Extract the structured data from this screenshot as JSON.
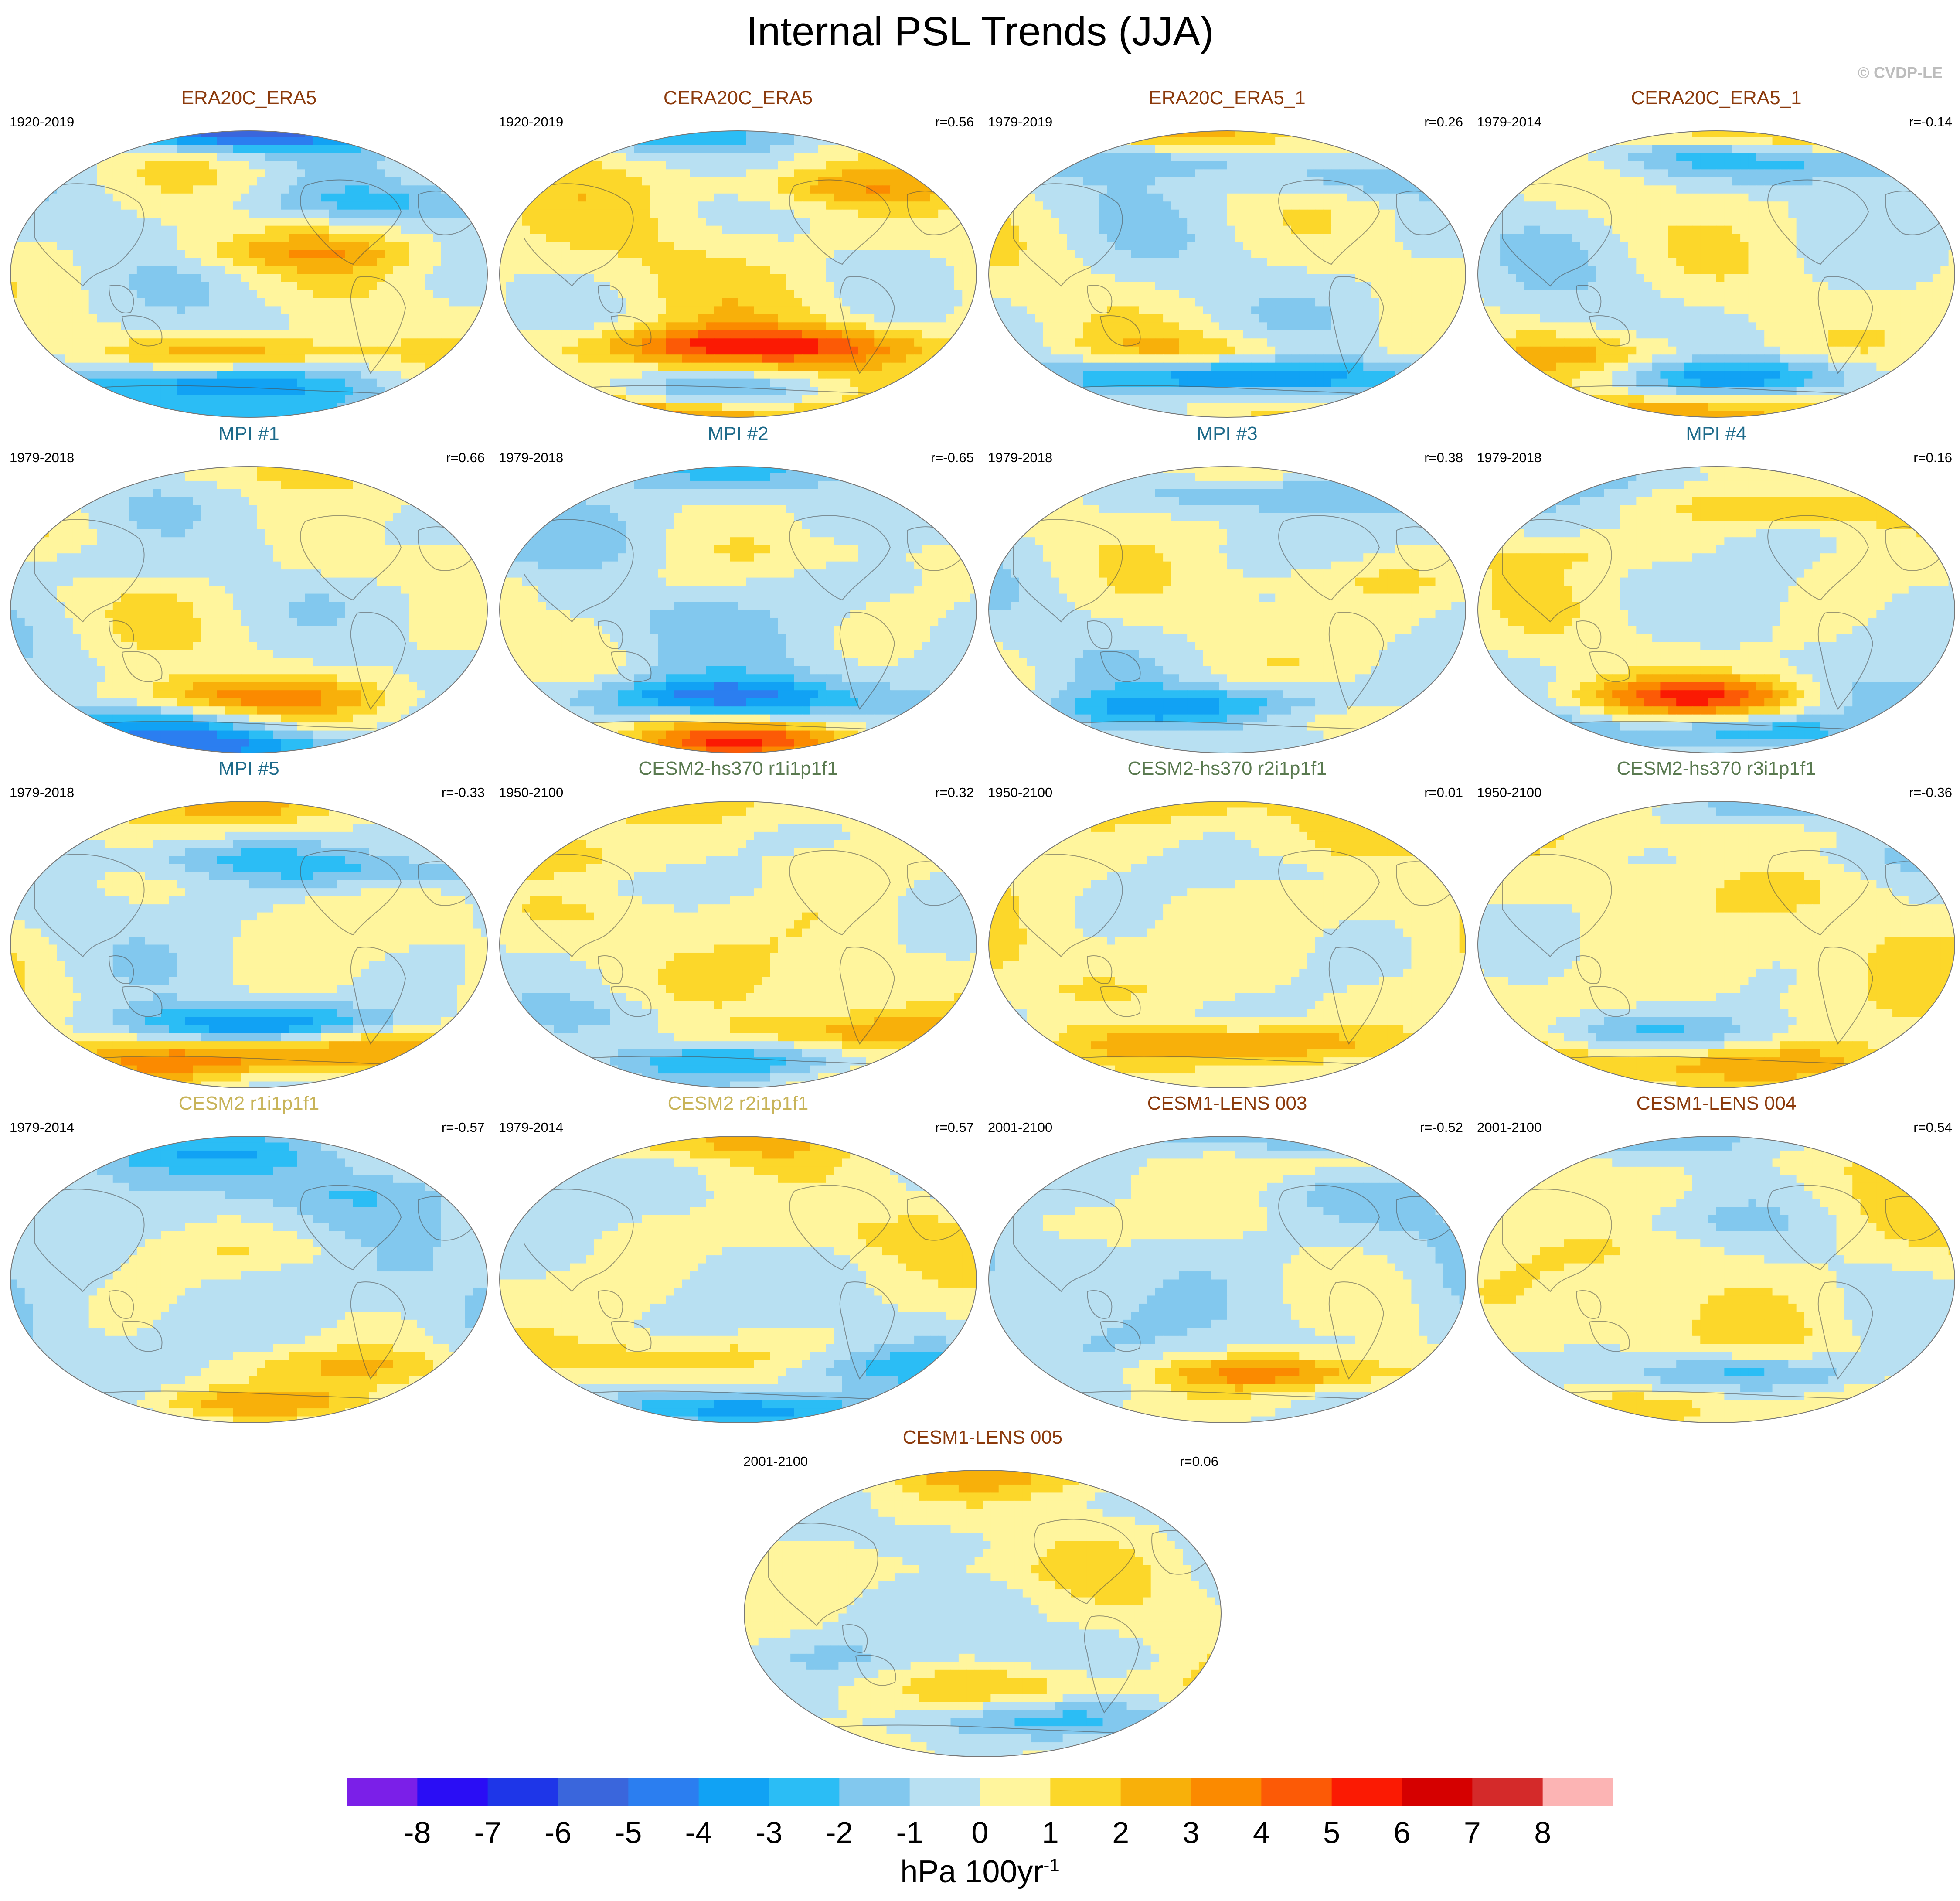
{
  "title": "Internal PSL Trends (JJA)",
  "credit": "© CVDP-LE",
  "title_colors": {
    "obs": "#8b3a0c",
    "mpi": "#1d6a8a",
    "cesm2hs": "#5a7a50",
    "cesm2": "#c8b45a",
    "lens": "#8b3a0c"
  },
  "palette": [
    "#7b1fe8",
    "#2a0df5",
    "#1e36e8",
    "#3a66dc",
    "#2b7ef0",
    "#11a2f4",
    "#2bbdf5",
    "#82c8ee",
    "#b8e0f2",
    "#fff59d",
    "#fcd72a",
    "#f8b00a",
    "#fb8a00",
    "#fc5a06",
    "#fb1a03",
    "#d50000",
    "#d42a2a",
    "#fcb4b4"
  ],
  "panels": [
    {
      "title": "ERA20C_ERA5",
      "period": "1920-2019",
      "r": "",
      "group": "obs",
      "pattern": {
        "base": 0,
        "features": [
          [
            -3,
            -0.95,
            -0.3
          ],
          [
            -4,
            -0.75,
            -0.3
          ],
          [
            3,
            -0.55,
            0.05
          ],
          [
            -6,
            0.98,
            -0.1
          ],
          [
            2,
            0.15,
            0.2
          ],
          [
            -2,
            0.5,
            0.5
          ]
        ]
      }
    },
    {
      "title": "CERA20C_ERA5",
      "period": "1920-2019",
      "r": "r=0.56",
      "group": "obs",
      "pattern": {
        "base": 0.5,
        "features": [
          [
            4,
            -0.98,
            -0.2
          ],
          [
            -2,
            -0.82,
            0.0
          ],
          [
            3,
            -0.5,
            -0.2
          ],
          [
            3,
            -0.5,
            0.3
          ],
          [
            -3,
            0.97,
            -0.2
          ],
          [
            2,
            0.6,
            0.4
          ]
        ]
      }
    },
    {
      "title": "ERA20C_ERA5_1",
      "period": "1979-2019",
      "r": "r=0.26",
      "group": "obs",
      "pattern": {
        "base": 0,
        "features": [
          [
            -3,
            -0.7,
            -0.3
          ],
          [
            -3,
            -0.7,
            0.25
          ],
          [
            2,
            -0.55,
            0.0
          ],
          [
            2,
            0.95,
            0.0
          ],
          [
            -2,
            0.8,
            -0.3
          ],
          [
            -2,
            0.65,
            0.65
          ]
        ]
      }
    },
    {
      "title": "CERA20C_ERA5_1",
      "period": "1979-2014",
      "r": "r=-0.14",
      "group": "obs",
      "pattern": {
        "base": 0,
        "features": [
          [
            3,
            -0.95,
            0.0
          ],
          [
            -3,
            -0.7,
            0.2
          ],
          [
            2,
            -0.55,
            -0.4
          ],
          [
            3,
            0.95,
            0.05
          ],
          [
            -2,
            0.85,
            -0.3
          ],
          [
            -2,
            0.75,
            0.45
          ]
        ]
      }
    },
    {
      "title": "MPI #1",
      "period": "1979-2018",
      "r": "r=0.66",
      "group": "mpi",
      "pattern": {
        "base": 0,
        "features": [
          [
            -4,
            -0.95,
            0.0
          ],
          [
            3,
            -0.6,
            0.0
          ],
          [
            -2,
            -0.8,
            -0.4
          ],
          [
            1,
            0.95,
            0.0
          ],
          [
            1,
            0.3,
            0.6
          ],
          [
            -1,
            0.3,
            -0.7
          ]
        ]
      }
    },
    {
      "title": "MPI #2",
      "period": "1979-2018",
      "r": "r=-0.65",
      "group": "mpi",
      "pattern": {
        "base": -0.5,
        "features": [
          [
            5,
            -0.9,
            0.1
          ],
          [
            -4,
            -0.6,
            -0.1
          ],
          [
            -2,
            0.95,
            0.0
          ],
          [
            1,
            0.4,
            0.3
          ],
          [
            1,
            0.2,
            -0.6
          ]
        ]
      }
    },
    {
      "title": "MPI #3",
      "period": "1979-2018",
      "r": "r=0.38",
      "group": "mpi",
      "pattern": {
        "base": 0,
        "features": [
          [
            -3,
            -0.65,
            0.2
          ],
          [
            -2,
            -0.7,
            -0.3
          ],
          [
            2,
            -0.7,
            0.45
          ],
          [
            1,
            0.95,
            -0.1
          ],
          [
            -2,
            0.8,
            0.2
          ],
          [
            1,
            0.2,
            0.6
          ]
        ]
      }
    },
    {
      "title": "MPI #4",
      "period": "1979-2018",
      "r": "r=0.16",
      "group": "mpi",
      "pattern": {
        "base": 0,
        "features": [
          [
            5,
            -0.6,
            0.0
          ],
          [
            -3,
            -0.85,
            0.05
          ],
          [
            -2,
            -0.6,
            0.6
          ],
          [
            2,
            0.7,
            0.4
          ],
          [
            1,
            0.4,
            -0.5
          ],
          [
            -1,
            0.9,
            -0.4
          ]
        ]
      }
    },
    {
      "title": "MPI #5",
      "period": "1979-2018",
      "r": "r=-0.33",
      "group": "mpi",
      "pattern": {
        "base": 0,
        "features": [
          [
            -4,
            -0.55,
            0.0
          ],
          [
            3,
            -0.8,
            -0.1
          ],
          [
            3,
            -0.7,
            0.5
          ],
          [
            2,
            0.95,
            0.0
          ],
          [
            -2,
            0.6,
            -0.1
          ],
          [
            -2,
            0.5,
            0.55
          ]
        ]
      }
    },
    {
      "title": "CESM2-hs370 r1i1p1f1",
      "period": "1950-2100",
      "r": "r=0.32",
      "group": "cesm2hs",
      "pattern": {
        "base": 0.5,
        "features": [
          [
            -3,
            -0.8,
            0.0
          ],
          [
            2,
            -0.6,
            0.5
          ],
          [
            -1,
            0.4,
            -0.5
          ],
          [
            1,
            0.95,
            0.0
          ],
          [
            -1,
            -0.5,
            -0.5
          ]
        ]
      }
    },
    {
      "title": "CESM2-hs370 r2i1p1f1",
      "period": "1950-2100",
      "r": "r=0.01",
      "group": "cesm2hs",
      "pattern": {
        "base": 0.5,
        "features": [
          [
            3,
            -0.7,
            0.1
          ],
          [
            -1,
            -0.5,
            -0.4
          ],
          [
            -1,
            0.5,
            0.5
          ],
          [
            1,
            0.95,
            -0.2
          ],
          [
            -1,
            -0.8,
            0.5
          ]
        ]
      }
    },
    {
      "title": "CESM2-hs370 r3i1p1f1",
      "period": "1950-2100",
      "r": "r=-0.36",
      "group": "cesm2hs",
      "pattern": {
        "base": 0.5,
        "features": [
          [
            2,
            -0.85,
            -0.1
          ],
          [
            -2,
            -0.6,
            -0.3
          ],
          [
            -1,
            0.6,
            0.4
          ],
          [
            -2,
            0.95,
            0.3
          ],
          [
            1,
            -0.8,
            0.4
          ]
        ]
      }
    },
    {
      "title": "CESM2 r1i1p1f1",
      "period": "1979-2014",
      "r": "r=-0.57",
      "group": "cesm2",
      "pattern": {
        "base": -0.5,
        "features": [
          [
            3,
            -0.85,
            0.0
          ],
          [
            2,
            -0.6,
            0.4
          ],
          [
            -2,
            0.85,
            -0.2
          ],
          [
            1,
            0.2,
            0.1
          ],
          [
            -1,
            0.6,
            0.3
          ]
        ]
      }
    },
    {
      "title": "CESM2 r2i1p1f1",
      "period": "1979-2014",
      "r": "r=0.57",
      "group": "cesm2",
      "pattern": {
        "base": 0,
        "features": [
          [
            -4,
            -0.9,
            0.0
          ],
          [
            2,
            -0.55,
            -0.2
          ],
          [
            2,
            0.95,
            -0.2
          ],
          [
            -2,
            -0.6,
            0.55
          ],
          [
            1,
            0.3,
            0.3
          ]
        ]
      }
    },
    {
      "title": "CESM1-LENS 003",
      "period": "2001-2100",
      "r": "r=-0.52",
      "group": "lens",
      "pattern": {
        "base": -0.5,
        "features": [
          [
            4,
            -0.65,
            0.2
          ],
          [
            1,
            -0.9,
            0.0
          ],
          [
            2,
            0.8,
            0.5
          ],
          [
            1,
            0.4,
            -0.6
          ],
          [
            -1,
            0.95,
            0.0
          ]
        ]
      }
    },
    {
      "title": "CESM1-LENS 004",
      "period": "2001-2100",
      "r": "r=0.54",
      "group": "lens",
      "pattern": {
        "base": 0.5,
        "features": [
          [
            -3,
            -0.65,
            0.1
          ],
          [
            -2,
            0.97,
            0.0
          ],
          [
            -1,
            0.4,
            -0.3
          ],
          [
            1,
            -0.9,
            -0.4
          ]
        ]
      }
    },
    {
      "title": "CESM1-LENS 005",
      "period": "2001-2100",
      "r": "r=0.06",
      "group": "lens",
      "pattern": {
        "base": 0,
        "features": [
          [
            2,
            -0.5,
            0.3
          ],
          [
            -2,
            -0.75,
            0.15
          ],
          [
            2,
            0.95,
            0.3
          ],
          [
            1,
            0.3,
            -0.2
          ],
          [
            -1,
            -0.3,
            -0.6
          ]
        ]
      }
    }
  ],
  "chart_data": {
    "type": "heatmap",
    "title": "Internal PSL Trends (JJA)",
    "projection": "global map (Winkel tripel), Pacific-centered",
    "colorbar": {
      "ticks": [
        -8,
        -7,
        -6,
        -5,
        -4,
        -3,
        -2,
        -1,
        0,
        1,
        2,
        3,
        4,
        5,
        6,
        7,
        8
      ],
      "tick_labels": [
        "-8",
        "-7",
        "-6",
        "-5",
        "-4",
        "-3",
        "-2",
        "-1",
        "0",
        "1",
        "2",
        "3",
        "4",
        "5",
        "6",
        "7",
        "8"
      ],
      "unit_base": "hPa 100yr",
      "unit_exp": "-1",
      "n_bins": 18
    },
    "panels": [
      {
        "name": "ERA20C_ERA5",
        "period": "1920-2019",
        "r": null
      },
      {
        "name": "CERA20C_ERA5",
        "period": "1920-2019",
        "r": 0.56
      },
      {
        "name": "ERA20C_ERA5_1",
        "period": "1979-2019",
        "r": 0.26
      },
      {
        "name": "CERA20C_ERA5_1",
        "period": "1979-2014",
        "r": -0.14
      },
      {
        "name": "MPI #1",
        "period": "1979-2018",
        "r": 0.66
      },
      {
        "name": "MPI #2",
        "period": "1979-2018",
        "r": -0.65
      },
      {
        "name": "MPI #3",
        "period": "1979-2018",
        "r": 0.38
      },
      {
        "name": "MPI #4",
        "period": "1979-2018",
        "r": 0.16
      },
      {
        "name": "MPI #5",
        "period": "1979-2018",
        "r": -0.33
      },
      {
        "name": "CESM2-hs370 r1i1p1f1",
        "period": "1950-2100",
        "r": 0.32
      },
      {
        "name": "CESM2-hs370 r2i1p1f1",
        "period": "1950-2100",
        "r": 0.01
      },
      {
        "name": "CESM2-hs370 r3i1p1f1",
        "period": "1950-2100",
        "r": -0.36
      },
      {
        "name": "CESM2 r1i1p1f1",
        "period": "1979-2014",
        "r": -0.57
      },
      {
        "name": "CESM2 r2i1p1f1",
        "period": "1979-2014",
        "r": 0.57
      },
      {
        "name": "CESM1-LENS 003",
        "period": "2001-2100",
        "r": -0.52
      },
      {
        "name": "CESM1-LENS 004",
        "period": "2001-2100",
        "r": 0.54
      },
      {
        "name": "CESM1-LENS 005",
        "period": "2001-2100",
        "r": 0.06
      }
    ]
  }
}
